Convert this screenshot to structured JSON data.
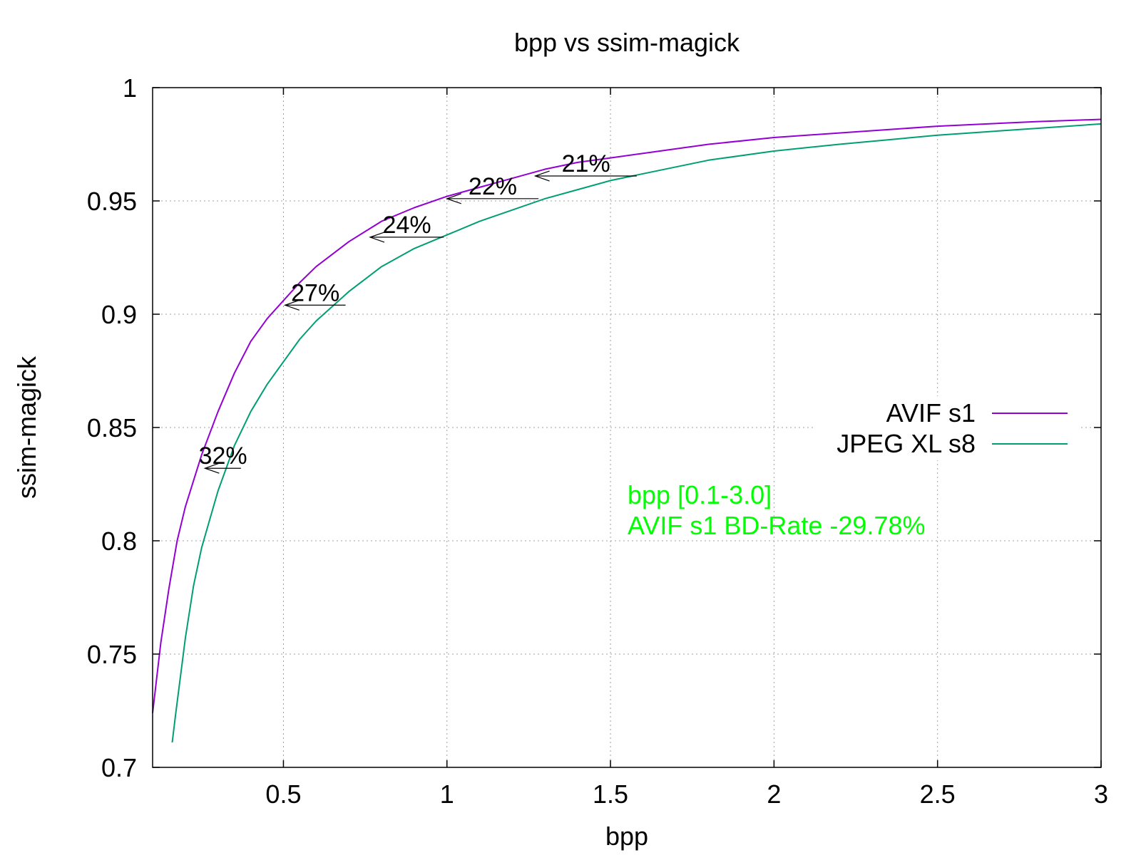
{
  "chart_data": {
    "type": "line",
    "title": "bpp vs ssim-magick",
    "xlabel": "bpp",
    "ylabel": "ssim-magick",
    "xlim": [
      0.1,
      3.0
    ],
    "ylim": [
      0.7,
      1.0
    ],
    "xticks": [
      0.5,
      1,
      1.5,
      2,
      2.5,
      3
    ],
    "xtick_labels": [
      "0.5",
      "1",
      "1.5",
      "2",
      "2.5",
      "3"
    ],
    "yticks": [
      0.7,
      0.75,
      0.8,
      0.85,
      0.9,
      0.95,
      1.0
    ],
    "ytick_labels": [
      "0.7",
      "0.75",
      "0.8",
      "0.85",
      "0.9",
      "0.95",
      "1"
    ],
    "grid": true,
    "legend_position": "right",
    "series": [
      {
        "name": "AVIF s1",
        "color": "#9400d3",
        "x": [
          0.1,
          0.125,
          0.15,
          0.175,
          0.2,
          0.25,
          0.3,
          0.35,
          0.4,
          0.45,
          0.5,
          0.55,
          0.6,
          0.7,
          0.8,
          0.9,
          1.0,
          1.1,
          1.2,
          1.3,
          1.4,
          1.5,
          1.6,
          1.8,
          2.0,
          2.2,
          2.5,
          2.8,
          3.0
        ],
        "y": [
          0.724,
          0.755,
          0.779,
          0.8,
          0.815,
          0.838,
          0.857,
          0.874,
          0.888,
          0.898,
          0.906,
          0.914,
          0.921,
          0.932,
          0.941,
          0.947,
          0.952,
          0.956,
          0.96,
          0.964,
          0.967,
          0.969,
          0.971,
          0.975,
          0.978,
          0.98,
          0.983,
          0.985,
          0.986
        ]
      },
      {
        "name": "JPEG XL s8",
        "color": "#009e73",
        "x": [
          0.16,
          0.17,
          0.2,
          0.225,
          0.25,
          0.3,
          0.35,
          0.4,
          0.45,
          0.5,
          0.55,
          0.6,
          0.7,
          0.8,
          0.9,
          1.0,
          1.1,
          1.2,
          1.3,
          1.4,
          1.5,
          1.6,
          1.8,
          2.0,
          2.2,
          2.5,
          2.8,
          3.0
        ],
        "y": [
          0.711,
          0.723,
          0.757,
          0.78,
          0.797,
          0.822,
          0.842,
          0.857,
          0.869,
          0.879,
          0.889,
          0.897,
          0.91,
          0.921,
          0.929,
          0.935,
          0.941,
          0.946,
          0.951,
          0.955,
          0.959,
          0.962,
          0.968,
          0.972,
          0.975,
          0.979,
          0.982,
          0.984
        ]
      }
    ],
    "annotations": [
      {
        "label": "32%",
        "x_from": 0.37,
        "x_to": 0.26,
        "y": 0.832
      },
      {
        "label": "27%",
        "x_from": 0.69,
        "x_to": 0.505,
        "y": 0.904
      },
      {
        "label": "24%",
        "x_from": 0.99,
        "x_to": 0.765,
        "y": 0.934
      },
      {
        "label": "22%",
        "x_from": 1.28,
        "x_to": 1.0,
        "y": 0.951
      },
      {
        "label": "21%",
        "x_from": 1.58,
        "x_to": 1.27,
        "y": 0.961
      }
    ],
    "text_notes": [
      "bpp [0.1-3.0]",
      "AVIF s1 BD-Rate -29.78%"
    ],
    "text_note_color": "#00ff00"
  }
}
